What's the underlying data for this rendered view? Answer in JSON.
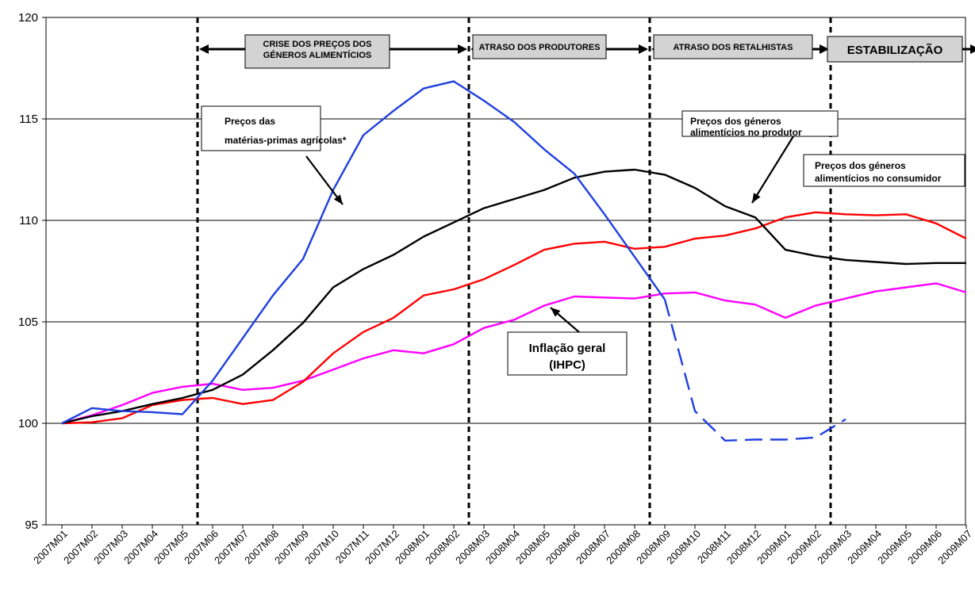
{
  "chart_data": {
    "type": "line",
    "title": "",
    "xlabel": "",
    "ylabel": "",
    "ylim": [
      95,
      120
    ],
    "yticks": [
      "95",
      "100",
      "105",
      "110",
      "115",
      "120"
    ],
    "grid": "horizontal",
    "categories": [
      "2007M01",
      "2007M02",
      "2007M03",
      "2007M04",
      "2007M05",
      "2007M06",
      "2007M07",
      "2007M08",
      "2007M09",
      "2007M10",
      "2007M11",
      "2007M12",
      "2008M01",
      "2008M02",
      "2008M03",
      "2008M04",
      "2008M05",
      "2008M06",
      "2008M07",
      "2008M08",
      "2008M09",
      "2008M10",
      "2008M11",
      "2008M12",
      "2009M01",
      "2009M02",
      "2009M03",
      "2009M04",
      "2009M05",
      "2009M06",
      "2009M07"
    ],
    "series": [
      {
        "key": "agri",
        "color": "#1f3fe0",
        "values": [
          100.0,
          100.75,
          100.6,
          100.55,
          100.45,
          102.1,
          104.2,
          106.3,
          108.1,
          111.5,
          114.2,
          115.4,
          116.5,
          116.85,
          115.9,
          114.85,
          113.5,
          112.3,
          110.3,
          108.2,
          106.1,
          null,
          null,
          null,
          null,
          null,
          null,
          null,
          null,
          null,
          null
        ],
        "projected_from_index": 20,
        "projected_values": [
          null,
          null,
          null,
          null,
          null,
          null,
          null,
          null,
          null,
          null,
          null,
          null,
          null,
          null,
          null,
          null,
          null,
          null,
          null,
          null,
          106.1,
          100.6,
          99.15,
          99.2,
          99.2,
          99.3,
          100.2,
          null,
          null,
          null,
          null
        ]
      },
      {
        "key": "producer",
        "color": "#000000",
        "values": [
          100.0,
          100.35,
          100.6,
          100.95,
          101.25,
          101.65,
          102.4,
          103.6,
          104.95,
          106.7,
          107.6,
          108.3,
          109.2,
          109.9,
          110.6,
          111.05,
          111.5,
          112.1,
          112.4,
          112.5,
          112.25,
          111.6,
          110.7,
          110.15,
          108.55,
          108.25,
          108.05,
          107.95,
          107.85,
          107.9,
          107.9
        ],
        "projected_from_index": null
      },
      {
        "key": "consumer",
        "color": "#ff0000",
        "values": [
          100.0,
          100.05,
          100.25,
          100.9,
          101.15,
          101.25,
          100.95,
          101.15,
          102.05,
          103.45,
          104.5,
          105.2,
          106.3,
          106.6,
          107.1,
          107.8,
          108.55,
          108.85,
          108.95,
          108.6,
          108.7,
          109.1,
          109.25,
          109.6,
          110.15,
          110.4,
          110.3,
          110.25,
          110.3,
          109.85,
          109.1
        ],
        "projected_from_index": null
      },
      {
        "key": "hicp",
        "color": "#ff00ff",
        "values": [
          100.0,
          100.4,
          100.9,
          101.5,
          101.8,
          101.95,
          101.65,
          101.75,
          102.1,
          102.65,
          103.2,
          103.6,
          103.45,
          103.9,
          104.7,
          105.1,
          105.8,
          106.25,
          106.2,
          106.15,
          106.4,
          106.45,
          106.05,
          105.85,
          105.2,
          105.8,
          106.15,
          106.5,
          106.7,
          106.9,
          106.45
        ],
        "projected_from_index": null
      }
    ],
    "phases": [
      {
        "label_lines": [
          "CRISE DOS PREÇOS DOS",
          "GÉNEROS ALIMENTÍCIOS"
        ],
        "from_index": 4.5,
        "to_index": 13.5
      },
      {
        "label_lines": [
          "ATRASO DOS PRODUTORES"
        ],
        "from_index": 13.5,
        "to_index": 19.5
      },
      {
        "label_lines": [
          "ATRASO DOS RETALHISTAS"
        ],
        "from_index": 19.5,
        "to_index": 25.5
      },
      {
        "label_lines": [
          "ESTABILIZAÇÃO"
        ],
        "from_index": 25.5,
        "to_index": 30.5
      }
    ],
    "annotations": [
      {
        "key": "agri",
        "lines": [
          "Preços das",
          "matérias-primas agrícolas*"
        ]
      },
      {
        "key": "producer",
        "lines": [
          "Preços dos géneros",
          "alimentícios no produtor"
        ]
      },
      {
        "key": "consumer",
        "lines": [
          "Preços dos géneros",
          "alimentícios no consumidor"
        ]
      },
      {
        "key": "hicp",
        "lines": [
          "Inflação geral",
          "(IHPC)"
        ]
      }
    ]
  }
}
